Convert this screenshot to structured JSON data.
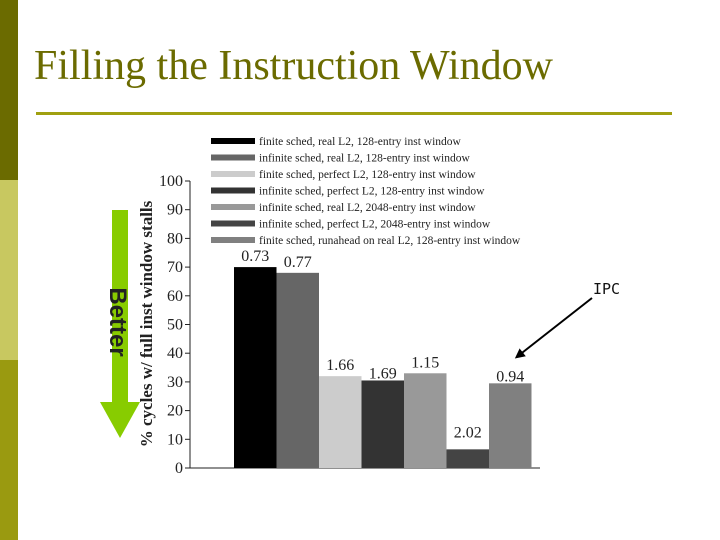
{
  "slide": {
    "title": "Filling the Instruction Window",
    "better_label": "Better",
    "ipc_label": "IPC",
    "colors": {
      "title": "#6b6b00",
      "rule": "#a0a010",
      "arrow": "#88cc00"
    }
  },
  "chart_data": {
    "type": "bar",
    "ylabel": "% cycles w/ full inst window stalls",
    "ylim": [
      0,
      100
    ],
    "yticks": [
      0,
      10,
      20,
      30,
      40,
      50,
      60,
      70,
      80,
      90,
      100
    ],
    "legend_position": "top",
    "series": [
      {
        "name": "finite sched, real L2, 128-entry inst window",
        "value": 70,
        "ipc_label": "0.73",
        "color": "#000000"
      },
      {
        "name": "infinite sched, real L2, 128-entry inst window",
        "value": 68,
        "ipc_label": "0.77",
        "color": "#666666"
      },
      {
        "name": "finite sched, perfect L2, 128-entry inst window",
        "value": 32,
        "ipc_label": "1.66",
        "color": "#cccccc"
      },
      {
        "name": "infinite sched, perfect L2, 128-entry inst window",
        "value": 30.5,
        "ipc_label": "1.69",
        "color": "#333333"
      },
      {
        "name": "infinite sched, real L2, 2048-entry inst window",
        "value": 33,
        "ipc_label": "1.15",
        "color": "#999999"
      },
      {
        "name": "infinite sched, perfect L2, 2048-entry inst window",
        "value": 6.5,
        "ipc_label": "2.02",
        "color": "#444444"
      },
      {
        "name": "finite sched, runahead on real L2, 128-entry inst window",
        "value": 29.5,
        "ipc_label": "0.94",
        "color": "#808080"
      }
    ]
  }
}
